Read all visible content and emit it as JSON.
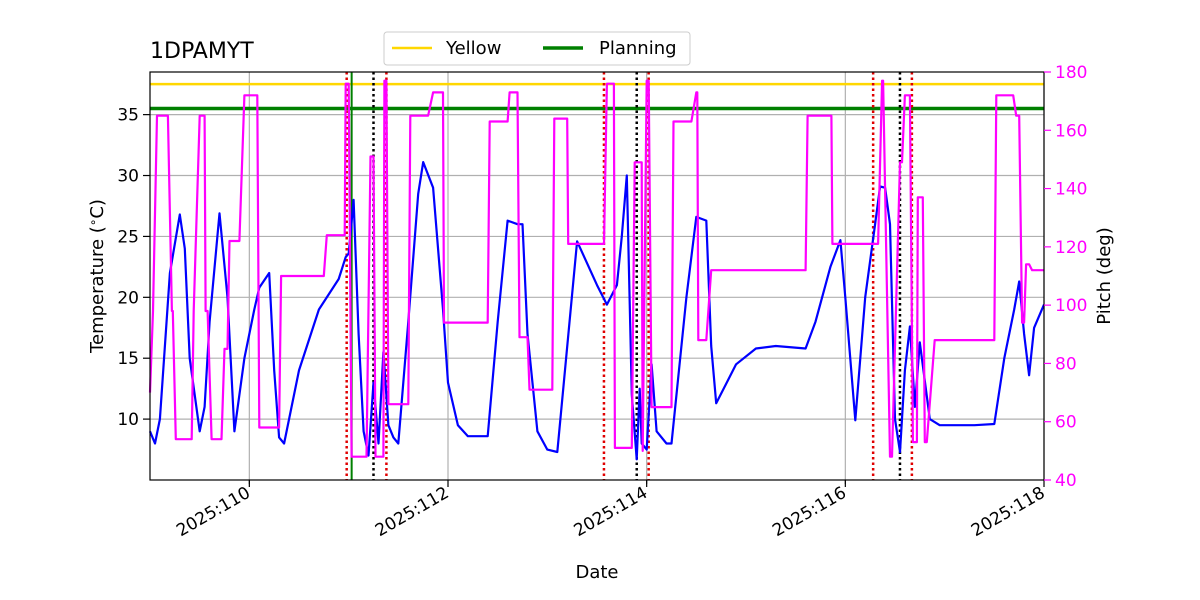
{
  "chart_data": {
    "type": "line",
    "title": "1DPAMYT",
    "xlabel": "Date",
    "ylabel_left": "Temperature ($^\\circ$C)",
    "ylabel_right": "Pitch (deg)",
    "xlim": [
      109.0,
      118.0
    ],
    "ylim_left": [
      5.0,
      38.5
    ],
    "ylim_right": [
      40,
      180
    ],
    "x_ticks": [
      110,
      112,
      114,
      116,
      118
    ],
    "x_tick_labels": [
      "2025:110",
      "2025:112",
      "2025:114",
      "2025:116",
      "2025:118"
    ],
    "y_left_ticks": [
      10,
      15,
      20,
      25,
      30,
      35
    ],
    "y_left_tick_labels": [
      "10",
      "15",
      "20",
      "25",
      "30",
      "35"
    ],
    "y_right_ticks": [
      40,
      60,
      80,
      100,
      120,
      140,
      160,
      180
    ],
    "y_right_tick_labels": [
      "40",
      "60",
      "80",
      "100",
      "120",
      "140",
      "160",
      "180"
    ],
    "grid": true,
    "legend_placement": "top-center",
    "legend": [
      {
        "label": "Yellow",
        "color": "#ffd700"
      },
      {
        "label": "Planning",
        "color": "#008000"
      }
    ],
    "hlines": [
      {
        "name": "Yellow",
        "y": 37.5,
        "color": "#ffd700"
      },
      {
        "name": "Planning",
        "y": 35.5,
        "color": "#008000"
      }
    ],
    "vlines_red_dotted": [
      110.98,
      111.38,
      113.57,
      114.02,
      116.28,
      116.67
    ],
    "vlines_black_dotted": [
      111.25,
      113.9,
      116.55
    ],
    "vlines_green": [
      111.03
    ],
    "temperature": {
      "color": "#0000ff",
      "x": [
        109.0,
        109.05,
        109.1,
        109.2,
        109.3,
        109.35,
        109.4,
        109.5,
        109.55,
        109.6,
        109.7,
        109.78,
        109.85,
        109.95,
        110.05,
        110.1,
        110.2,
        110.25,
        110.3,
        110.35,
        110.5,
        110.7,
        110.9,
        110.97,
        111.0,
        111.05,
        111.1,
        111.15,
        111.2,
        111.25,
        111.3,
        111.35,
        111.4,
        111.45,
        111.5,
        111.6,
        111.7,
        111.75,
        111.85,
        111.95,
        112.0,
        112.1,
        112.2,
        112.4,
        112.5,
        112.6,
        112.7,
        112.75,
        112.8,
        112.9,
        113.0,
        113.1,
        113.3,
        113.5,
        113.6,
        113.7,
        113.75,
        113.8,
        113.85,
        113.9,
        113.93,
        113.95,
        114.0,
        114.05,
        114.1,
        114.2,
        114.25,
        114.4,
        114.5,
        114.6,
        114.65,
        114.7,
        114.9,
        115.1,
        115.3,
        115.6,
        115.7,
        115.85,
        115.95,
        116.0,
        116.1,
        116.2,
        116.3,
        116.35,
        116.4,
        116.45,
        116.5,
        116.55,
        116.6,
        116.65,
        116.7,
        116.75,
        116.85,
        116.95,
        117.1,
        117.3,
        117.5,
        117.6,
        117.7,
        117.75,
        117.8,
        117.85,
        117.9,
        118.0
      ],
      "y": [
        9.0,
        8.0,
        10.0,
        22.0,
        26.8,
        24.0,
        15.0,
        9.0,
        11.0,
        18.0,
        26.9,
        20.0,
        9.0,
        15.0,
        19.0,
        20.8,
        22.0,
        14.0,
        8.5,
        8.0,
        14.0,
        19.0,
        21.5,
        23.3,
        23.6,
        28.0,
        17.0,
        9.0,
        7.0,
        13.0,
        8.0,
        15.5,
        9.5,
        8.5,
        8.0,
        18.0,
        28.5,
        31.1,
        29.0,
        19.0,
        13.0,
        9.5,
        8.6,
        8.6,
        18.0,
        26.3,
        26.0,
        26.0,
        17.0,
        9.0,
        7.5,
        7.3,
        24.6,
        21.0,
        19.4,
        21.0,
        25.0,
        30.0,
        12.0,
        6.7,
        12.5,
        8.0,
        7.5,
        14.5,
        9.0,
        8.0,
        8.0,
        20.0,
        26.6,
        26.3,
        16.0,
        11.3,
        14.5,
        15.8,
        16.0,
        15.8,
        18.0,
        22.5,
        24.7,
        20.0,
        9.9,
        20.0,
        26.0,
        29.1,
        29.0,
        26.0,
        10.0,
        7.3,
        14.0,
        17.6,
        11.0,
        16.3,
        10.0,
        9.5,
        9.5,
        9.5,
        9.6,
        15.0,
        19.0,
        21.3,
        17.0,
        13.6,
        17.5,
        19.4
      ]
    },
    "pitch": {
      "color": "#ff00ff",
      "x": [
        109.0,
        109.03,
        109.07,
        109.12,
        109.18,
        109.22,
        109.23,
        109.26,
        109.28,
        109.32,
        109.35,
        109.42,
        109.44,
        109.5,
        109.55,
        109.56,
        109.58,
        109.62,
        109.7,
        109.72,
        109.75,
        109.78,
        109.8,
        109.82,
        109.85,
        109.87,
        109.9,
        109.95,
        109.96,
        110.05,
        110.08,
        110.1,
        110.15,
        110.25,
        110.3,
        110.32,
        110.35,
        110.42,
        110.45,
        110.48,
        110.5,
        110.6,
        110.75,
        110.78,
        110.82,
        110.9,
        110.92,
        110.96,
        110.97,
        111.0,
        111.03,
        111.04,
        111.08,
        111.1,
        111.12,
        111.18,
        111.22,
        111.25,
        111.27,
        111.3,
        111.35,
        111.36,
        111.38,
        111.4,
        111.45,
        111.48,
        111.6,
        111.62,
        111.8,
        111.85,
        111.95,
        111.96,
        112.0,
        112.1,
        112.2,
        112.3,
        112.4,
        112.42,
        112.6,
        112.62,
        112.7,
        112.72,
        112.8,
        112.82,
        113.0,
        113.05,
        113.07,
        113.2,
        113.21,
        113.55,
        113.57,
        113.6,
        113.67,
        113.68,
        113.7,
        113.8,
        113.85,
        113.88,
        113.95,
        113.96,
        114.0,
        114.02,
        114.05,
        114.07,
        114.1,
        114.25,
        114.27,
        114.4,
        114.45,
        114.5,
        114.51,
        114.52,
        114.55,
        114.58,
        114.6,
        114.65,
        114.67,
        115.6,
        115.62,
        115.85,
        115.86,
        115.87,
        116.0,
        116.02,
        116.28,
        116.29,
        116.33,
        116.37,
        116.38,
        116.45,
        116.47,
        116.55,
        116.57,
        116.6,
        116.65,
        116.68,
        116.72,
        116.73,
        116.78,
        116.8,
        116.82,
        116.9,
        116.92,
        117.5,
        117.52,
        117.68,
        117.69,
        117.72,
        117.75,
        117.78,
        117.8,
        117.82,
        117.85,
        117.88,
        117.9,
        118.0
      ],
      "y": [
        70,
        98,
        165,
        165,
        165,
        98,
        98,
        54,
        54,
        54,
        54,
        54,
        98,
        165,
        165,
        98,
        98,
        54,
        54,
        54,
        85,
        85,
        122,
        122,
        122,
        122,
        122,
        172,
        172,
        172,
        172,
        58,
        58,
        58,
        58,
        110,
        110,
        110,
        110,
        110,
        110,
        110,
        110,
        124,
        124,
        124,
        124,
        124,
        176,
        176,
        48,
        48,
        48,
        48,
        48,
        48,
        151,
        151,
        48,
        48,
        48,
        177,
        177,
        66,
        66,
        66,
        66,
        165,
        165,
        173,
        173,
        94,
        94,
        94,
        94,
        94,
        94,
        163,
        163,
        173,
        173,
        89,
        89,
        71,
        71,
        71,
        164,
        164,
        121,
        121,
        121,
        176,
        176,
        51,
        51,
        51,
        51,
        149,
        149,
        50,
        177,
        177,
        65,
        65,
        65,
        65,
        163,
        163,
        163,
        173,
        173,
        88,
        88,
        88,
        88,
        112,
        112,
        112,
        165,
        165,
        165,
        121,
        121,
        121,
        121,
        121,
        121,
        177,
        177,
        48,
        48,
        149,
        149,
        172,
        172,
        53,
        53,
        137,
        137,
        53,
        53,
        88,
        88,
        88,
        172,
        172,
        172,
        165,
        165,
        94,
        94,
        114,
        114,
        112,
        112,
        112
      ]
    }
  }
}
